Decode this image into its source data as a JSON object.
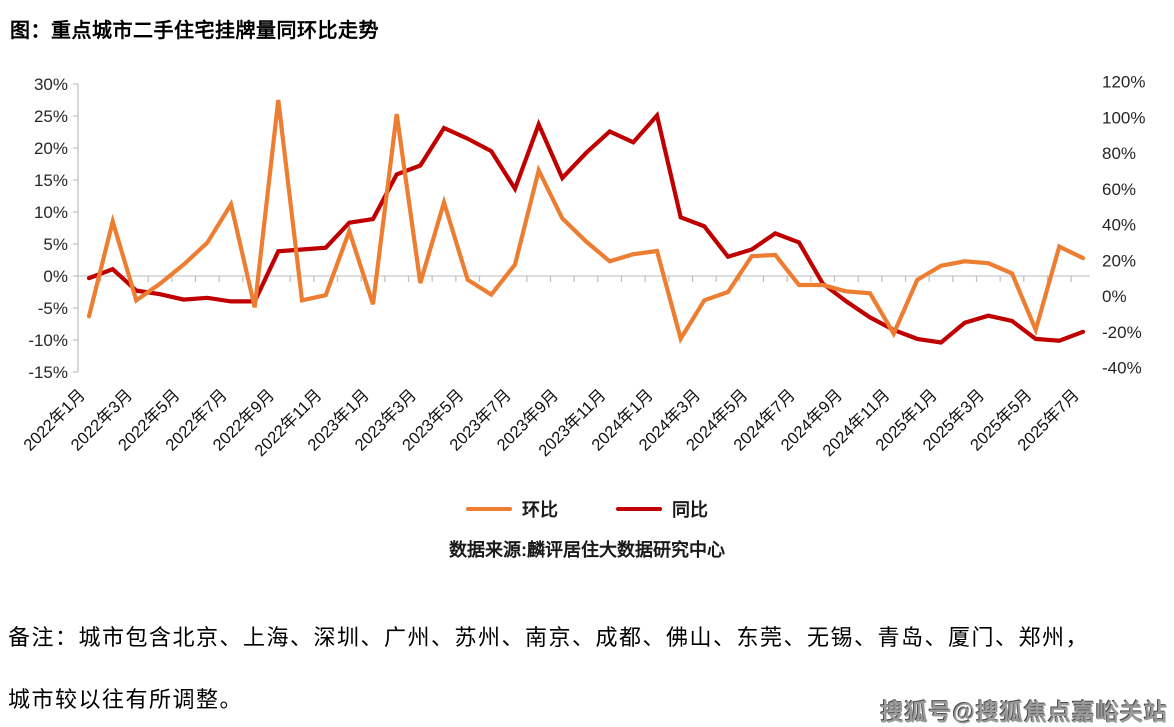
{
  "title": "图：重点城市二手住宅挂牌量同环比走势",
  "chart_data": {
    "type": "line",
    "x_tick_labels": [
      "2022年1月",
      "2022年3月",
      "2022年5月",
      "2022年7月",
      "2022年9月",
      "2022年11月",
      "2023年1月",
      "2023年3月",
      "2023年5月",
      "2023年7月",
      "2023年9月",
      "2023年11月",
      "2024年1月",
      "2024年3月",
      "2024年5月",
      "2024年7月",
      "2024年9月",
      "2024年11月",
      "2025年1月",
      "2025年3月",
      "2025年5月",
      "2025年7月"
    ],
    "x_tick_every": 2,
    "n_points": 43,
    "series": [
      {
        "name": "同比",
        "axis": "right",
        "color": "#C00000",
        "values": [
          10,
          15,
          3,
          1,
          -2,
          -1,
          -3,
          -3,
          25,
          26,
          27,
          41,
          43,
          68,
          73,
          94,
          88,
          81,
          60,
          96,
          66,
          80,
          92,
          86,
          101,
          44,
          39,
          22,
          26,
          35,
          30,
          7,
          -3,
          -12,
          -19,
          -24,
          -26,
          -15,
          -11,
          -14,
          -24,
          -25,
          -20
        ]
      },
      {
        "name": "环比",
        "axis": "left",
        "color": "#ED7D31",
        "values": [
          -6.3,
          8.5,
          -3.8,
          -1.2,
          1.8,
          5.2,
          11.2,
          -4.9,
          27.5,
          -3.8,
          -3.0,
          7.0,
          -4.4,
          25.3,
          -1.1,
          11.5,
          -0.6,
          -2.9,
          1.8,
          16.5,
          9.0,
          5.4,
          2.3,
          3.4,
          3.9,
          -9.8,
          -3.8,
          -2.5,
          3.1,
          3.3,
          -1.4,
          -1.4,
          -2.4,
          -2.7,
          -9.0,
          -0.6,
          1.6,
          2.3,
          2.0,
          0.4,
          -8.4,
          4.6,
          2.8
        ]
      }
    ],
    "left_axis": {
      "max": 30,
      "min": -15,
      "step": 5,
      "unit": "%"
    },
    "right_axis": {
      "max": 120,
      "min": -40,
      "step": 20,
      "unit": "%"
    },
    "grid": "zero-line-only",
    "legend_position": "bottom",
    "axis_colors": {
      "line": "#BFBFBF",
      "zero_line": "#D9D9D9",
      "text": "#262626"
    }
  },
  "legend": {
    "yoy_label": "同比",
    "mom_label": "环比"
  },
  "source": "数据来源:麟评居住大数据研究中心",
  "notes": {
    "line1": "备注：城市包含北京、上海、深圳、广州、苏州、南京、成都、佛山、东莞、无锡、青岛、厦门、郑州，",
    "line2": "城市较以往有所调整。"
  },
  "watermark": "搜狐号@搜狐焦点嘉峪关站"
}
